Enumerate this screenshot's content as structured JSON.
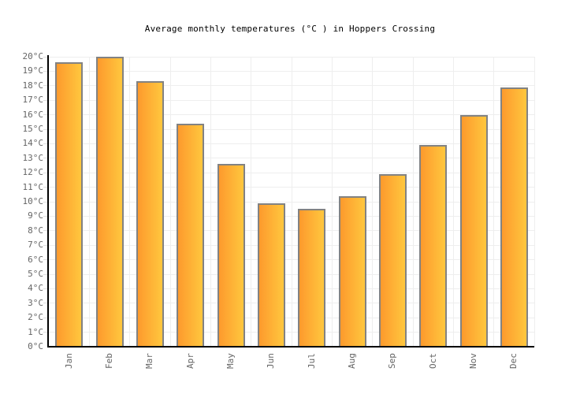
{
  "chart_data": {
    "type": "bar",
    "title": "Average monthly temperatures (°C ) in Hoppers Crossing",
    "categories": [
      "Jan",
      "Feb",
      "Mar",
      "Apr",
      "May",
      "Jun",
      "Jul",
      "Aug",
      "Sep",
      "Oct",
      "Nov",
      "Dec"
    ],
    "values": [
      19.6,
      20.0,
      18.3,
      15.4,
      12.6,
      9.9,
      9.5,
      10.4,
      11.9,
      13.9,
      16.0,
      17.9
    ],
    "unit": "°C",
    "xlabel": "",
    "ylabel": "",
    "ylim": [
      0,
      20
    ],
    "ytick_step": 1,
    "y_tick_labels": [
      "0°C",
      "1°C",
      "2°C",
      "3°C",
      "4°C",
      "5°C",
      "6°C",
      "7°C",
      "8°C",
      "9°C",
      "10°C",
      "11°C",
      "12°C",
      "13°C",
      "14°C",
      "15°C",
      "16°C",
      "17°C",
      "18°C",
      "19°C",
      "20°C"
    ],
    "grid": true,
    "legend": "none",
    "colors": {
      "bar_gradient_left": "#fd9a2d",
      "bar_gradient_right": "#ffc73e",
      "bar_border": "#828282",
      "gridline": "#eeeeee",
      "axis": "#000000",
      "tick_label": "#666666",
      "title": "#000000",
      "background": "#ffffff"
    }
  }
}
